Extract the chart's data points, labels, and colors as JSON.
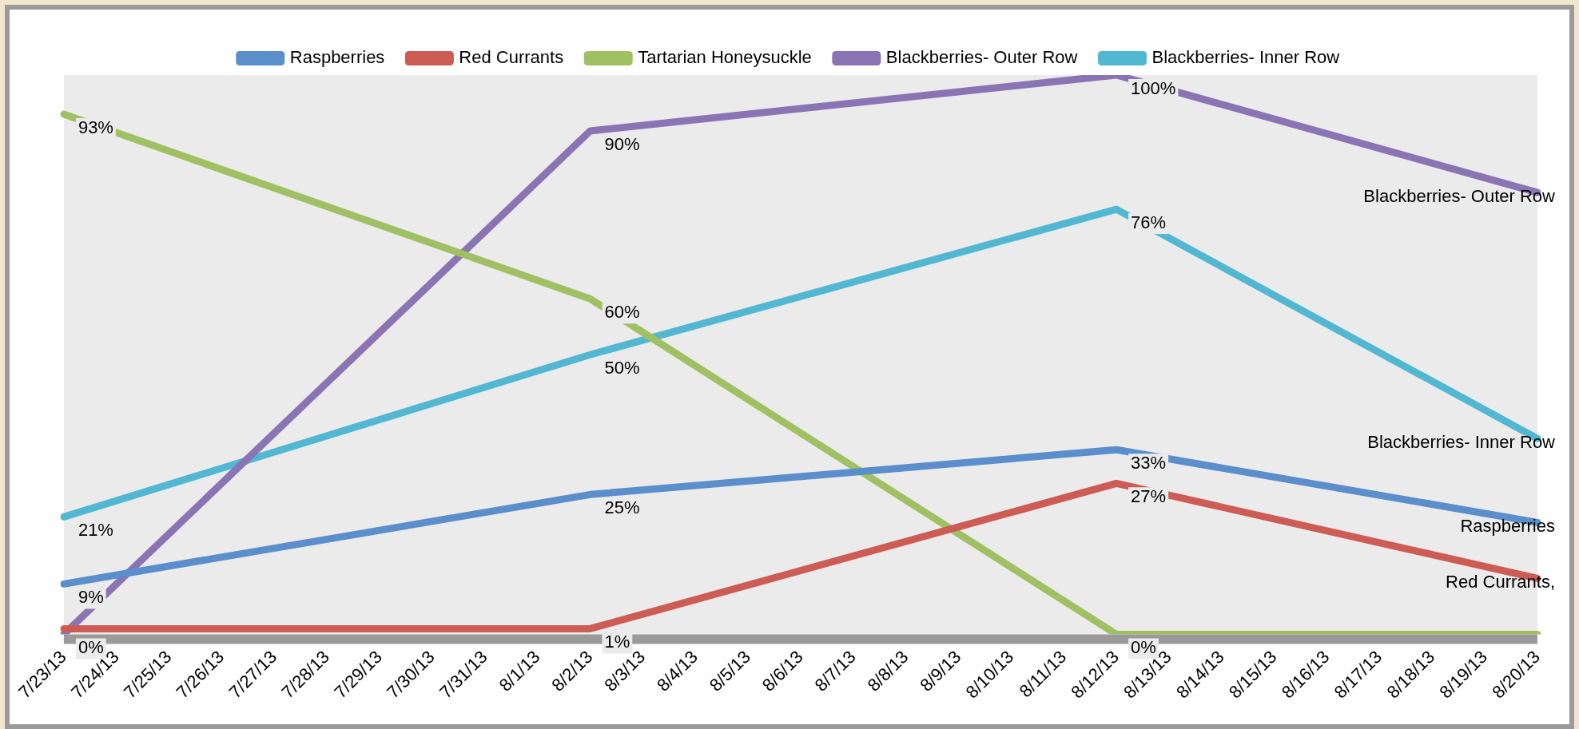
{
  "chart_data": {
    "type": "line",
    "categories": [
      "7/23/13",
      "7/24/13",
      "7/25/13",
      "7/26/13",
      "7/27/13",
      "7/28/13",
      "7/29/13",
      "7/30/13",
      "7/31/13",
      "8/1/13",
      "8/2/13",
      "8/3/13",
      "8/4/13",
      "8/5/13",
      "8/6/13",
      "8/7/13",
      "8/8/13",
      "8/9/13",
      "8/10/13",
      "8/11/13",
      "8/12/13",
      "8/13/13",
      "8/14/13",
      "8/15/13",
      "8/16/13",
      "8/17/13",
      "8/18/13",
      "8/19/13",
      "8/20/13"
    ],
    "series": [
      {
        "name": "Raspberries",
        "color": "#5b8fcb",
        "values": [
          9,
          null,
          null,
          null,
          null,
          null,
          null,
          null,
          null,
          null,
          25,
          null,
          null,
          null,
          null,
          null,
          null,
          null,
          null,
          null,
          33,
          null,
          null,
          null,
          null,
          null,
          null,
          null,
          20
        ],
        "value_labels": [
          "9%",
          null,
          null,
          null,
          null,
          null,
          null,
          null,
          null,
          null,
          "25%",
          null,
          null,
          null,
          null,
          null,
          null,
          null,
          null,
          null,
          "33%",
          null,
          null,
          null,
          null,
          null,
          null,
          null,
          null
        ]
      },
      {
        "name": "Red Currants",
        "color": "#cd5c55",
        "values": [
          1,
          null,
          null,
          null,
          null,
          null,
          null,
          null,
          null,
          null,
          1,
          null,
          null,
          null,
          null,
          null,
          null,
          null,
          null,
          null,
          27,
          null,
          null,
          null,
          null,
          null,
          null,
          null,
          10
        ],
        "value_labels": [
          null,
          null,
          null,
          null,
          null,
          null,
          null,
          null,
          null,
          null,
          "1%",
          null,
          null,
          null,
          null,
          null,
          null,
          null,
          null,
          null,
          "27%",
          null,
          null,
          null,
          null,
          null,
          null,
          null,
          null
        ]
      },
      {
        "name": "Tartarian Honeysuckle",
        "color": "#9fc163",
        "values": [
          93,
          null,
          null,
          null,
          null,
          null,
          null,
          null,
          null,
          null,
          60,
          null,
          null,
          null,
          null,
          null,
          null,
          null,
          null,
          null,
          0,
          null,
          null,
          null,
          null,
          null,
          null,
          null,
          0
        ],
        "value_labels": [
          "93%",
          null,
          null,
          null,
          null,
          null,
          null,
          null,
          null,
          null,
          "60%",
          null,
          null,
          null,
          null,
          null,
          null,
          null,
          null,
          null,
          "0%",
          null,
          null,
          null,
          null,
          null,
          null,
          null,
          null
        ]
      },
      {
        "name": "Blackberries- Outer Row",
        "color": "#8b74b3",
        "values": [
          0,
          null,
          null,
          null,
          null,
          null,
          null,
          null,
          null,
          null,
          90,
          null,
          null,
          null,
          null,
          null,
          null,
          null,
          null,
          null,
          100,
          null,
          null,
          null,
          null,
          null,
          null,
          null,
          79
        ],
        "value_labels": [
          "0%",
          null,
          null,
          null,
          null,
          null,
          null,
          null,
          null,
          null,
          "90%",
          null,
          null,
          null,
          null,
          null,
          null,
          null,
          null,
          null,
          "100%",
          null,
          null,
          null,
          null,
          null,
          null,
          null,
          null
        ]
      },
      {
        "name": "Blackberries- Inner Row",
        "color": "#52b8d2",
        "values": [
          21,
          null,
          null,
          null,
          null,
          null,
          null,
          null,
          null,
          null,
          50,
          null,
          null,
          null,
          null,
          null,
          null,
          null,
          null,
          null,
          76,
          null,
          null,
          null,
          null,
          null,
          null,
          null,
          35
        ],
        "value_labels": [
          "21%",
          null,
          null,
          null,
          null,
          null,
          null,
          null,
          null,
          null,
          "50%",
          null,
          null,
          null,
          null,
          null,
          null,
          null,
          null,
          null,
          "76%",
          null,
          null,
          null,
          null,
          null,
          null,
          null,
          null
        ]
      }
    ],
    "ylim": [
      0,
      100
    ],
    "tick_labels": "x",
    "grid": false,
    "legend": "top",
    "marker": "none",
    "annotations": [
      {
        "text": "Blackberries- Outer Row",
        "x": "8/20/13",
        "y": 79
      },
      {
        "text": "Blackberries- Inner Row",
        "x": "8/20/13",
        "y": 35
      },
      {
        "text": "Raspberries",
        "x": "8/20/13",
        "y": 20
      },
      {
        "text": "Red Currants,",
        "x": "8/20/13",
        "y": 10
      }
    ]
  }
}
